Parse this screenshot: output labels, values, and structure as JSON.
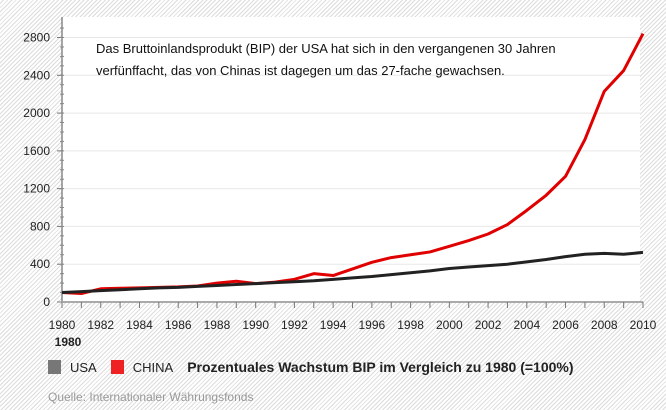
{
  "chart_data": {
    "type": "line",
    "title": "Prozentuales Wachstum BIP im Vergleich zu 1980 (=100%)",
    "annotation": "Das Bruttoinlandsprodukt (BIP) der USA hat sich in den vergangenen 30 Jahren verfünffacht, das von Chinas ist dagegen um das 27-fache gewachsen.",
    "source": "Quelle: Internationaler Währungsfonds",
    "xlabel": "",
    "ylabel": "",
    "xlim": [
      1980,
      2010
    ],
    "ylim": [
      0,
      2800
    ],
    "grid": true,
    "legend_placement": "bottom",
    "x": [
      1980,
      1981,
      1982,
      1983,
      1984,
      1985,
      1986,
      1987,
      1988,
      1989,
      1990,
      1991,
      1992,
      1993,
      1994,
      1995,
      1996,
      1997,
      1998,
      1999,
      2000,
      2001,
      2002,
      2003,
      2004,
      2005,
      2006,
      2007,
      2008,
      2009,
      2010
    ],
    "x_ticks": [
      "1980",
      "1982",
      "1984",
      "1986",
      "1988",
      "1990",
      "1992",
      "1994",
      "1996",
      "1998",
      "2000",
      "2002",
      "2004",
      "2006",
      "2008",
      "2010"
    ],
    "x_extra_label": "1980",
    "y_ticks": [
      "0",
      "400",
      "800",
      "1200",
      "1600",
      "2000",
      "2400",
      "2800"
    ],
    "series": [
      {
        "name": "USA",
        "color": "#777777",
        "line_color": "#222222",
        "values": [
          100,
          110,
          120,
          130,
          140,
          150,
          155,
          165,
          175,
          185,
          195,
          205,
          215,
          225,
          240,
          255,
          270,
          290,
          310,
          330,
          355,
          370,
          385,
          400,
          425,
          450,
          480,
          505,
          515,
          505,
          525
        ]
      },
      {
        "name": "CHINA",
        "color": "#ee2222",
        "line_color": "#e00000",
        "values": [
          100,
          90,
          140,
          145,
          150,
          155,
          160,
          170,
          200,
          220,
          195,
          210,
          240,
          300,
          280,
          350,
          420,
          470,
          500,
          530,
          590,
          650,
          720,
          820,
          970,
          1130,
          1330,
          1720,
          2230,
          2450,
          2840
        ]
      }
    ]
  }
}
